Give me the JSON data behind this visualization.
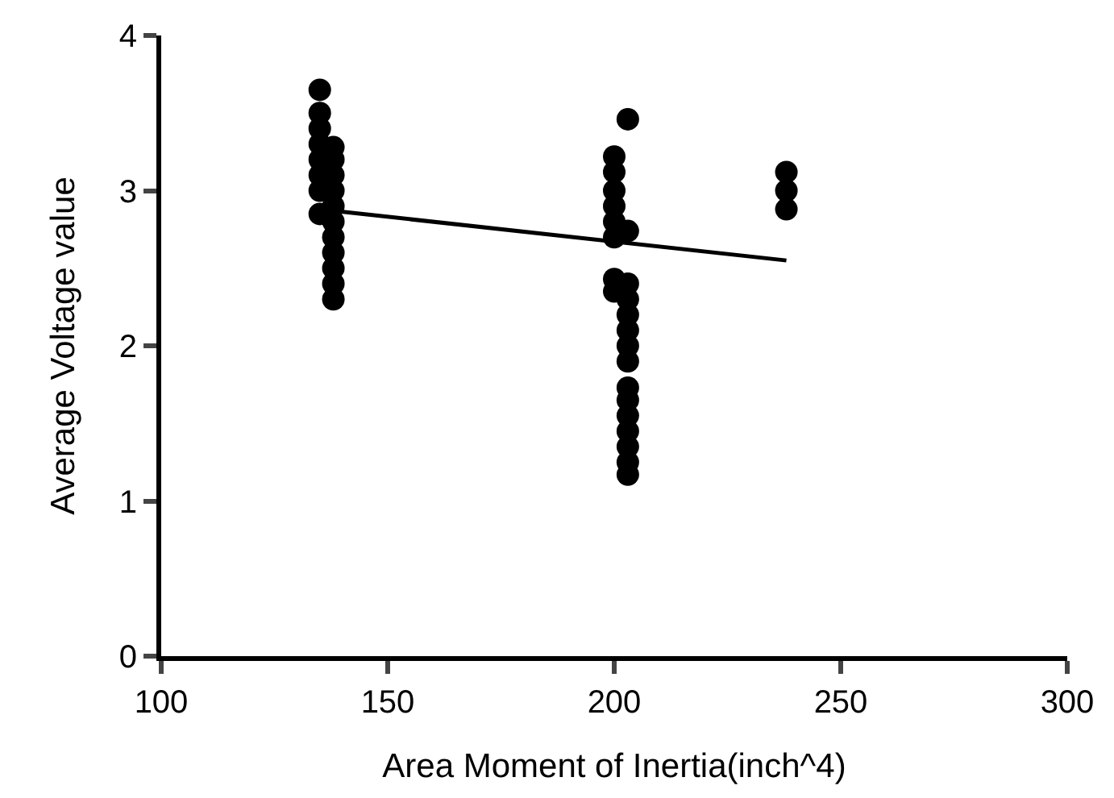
{
  "chart_data": {
    "type": "scatter",
    "xlabel": "Area Moment of Inertia(inch^4)",
    "ylabel": "Average Voltage value",
    "xlim": [
      100,
      300
    ],
    "ylim": [
      0,
      4
    ],
    "xticks": [
      100,
      150,
      200,
      250,
      300
    ],
    "yticks": [
      0,
      1,
      2,
      3,
      4
    ],
    "grid": false,
    "legend": false,
    "marker": "circle",
    "series": [
      {
        "color": "#000000",
        "x": [
          135,
          135,
          135,
          135,
          135,
          135,
          135,
          135,
          138,
          138,
          138,
          138,
          138,
          138,
          138,
          138,
          138,
          138,
          138,
          200,
          200,
          200,
          200,
          200,
          200,
          200,
          200,
          203,
          203,
          203,
          203,
          203,
          203,
          203,
          203,
          203,
          203,
          203,
          203,
          203,
          203,
          203,
          238,
          238,
          238
        ],
        "values": [
          3.65,
          3.5,
          3.4,
          3.3,
          3.2,
          3.1,
          3.0,
          2.85,
          3.28,
          3.2,
          3.1,
          3.0,
          2.9,
          2.8,
          2.7,
          2.6,
          2.5,
          2.4,
          2.3,
          3.22,
          3.12,
          3.0,
          2.9,
          2.8,
          2.7,
          2.43,
          2.35,
          3.46,
          2.74,
          2.4,
          2.3,
          2.2,
          2.1,
          2.0,
          1.9,
          1.73,
          1.65,
          1.55,
          1.45,
          1.35,
          1.25,
          1.17,
          3.12,
          3.0,
          2.88
        ]
      },
      {
        "type": "line",
        "color": "#000000",
        "line_style": "solid",
        "marker": "none",
        "x": [
          138,
          238
        ],
        "values": [
          2.87,
          2.55
        ]
      }
    ]
  }
}
